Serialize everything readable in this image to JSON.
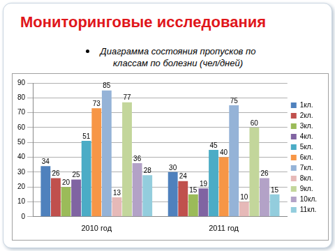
{
  "header": {
    "title": "Мониторинговые исследования"
  },
  "chart_data": {
    "type": "bar",
    "title": "Диаграмма состояния пропусков по классам по болезни (чел/дней)",
    "categories": [
      "2010 год",
      "2011 год"
    ],
    "series": [
      {
        "name": "1кл.",
        "color": "#4f81bd",
        "values": [
          34,
          30
        ]
      },
      {
        "name": "2кл.",
        "color": "#c0504d",
        "values": [
          26,
          24
        ]
      },
      {
        "name": "3кл.",
        "color": "#9bbb59",
        "values": [
          20,
          15
        ]
      },
      {
        "name": "4кл.",
        "color": "#8064a2",
        "values": [
          25,
          19
        ]
      },
      {
        "name": "5кл.",
        "color": "#4bacc6",
        "values": [
          51,
          45
        ]
      },
      {
        "name": "6кл.",
        "color": "#f79646",
        "values": [
          73,
          40
        ]
      },
      {
        "name": "7кл.",
        "color": "#95b3d7",
        "values": [
          85,
          75
        ]
      },
      {
        "name": "8кл.",
        "color": "#e6b9b8",
        "values": [
          13,
          10
        ]
      },
      {
        "name": "9кл.",
        "color": "#c3d69b",
        "values": [
          77,
          60
        ]
      },
      {
        "name": "10кл.",
        "color": "#b3a2c7",
        "values": [
          36,
          26
        ]
      },
      {
        "name": "11кл.",
        "color": "#93cddd",
        "values": [
          28,
          15
        ]
      }
    ],
    "ylim": [
      0,
      90
    ],
    "yticks": [
      0,
      10,
      20,
      30,
      40,
      50,
      60,
      70,
      80,
      90
    ],
    "grid": true,
    "legend": "right",
    "data_labels": true
  }
}
